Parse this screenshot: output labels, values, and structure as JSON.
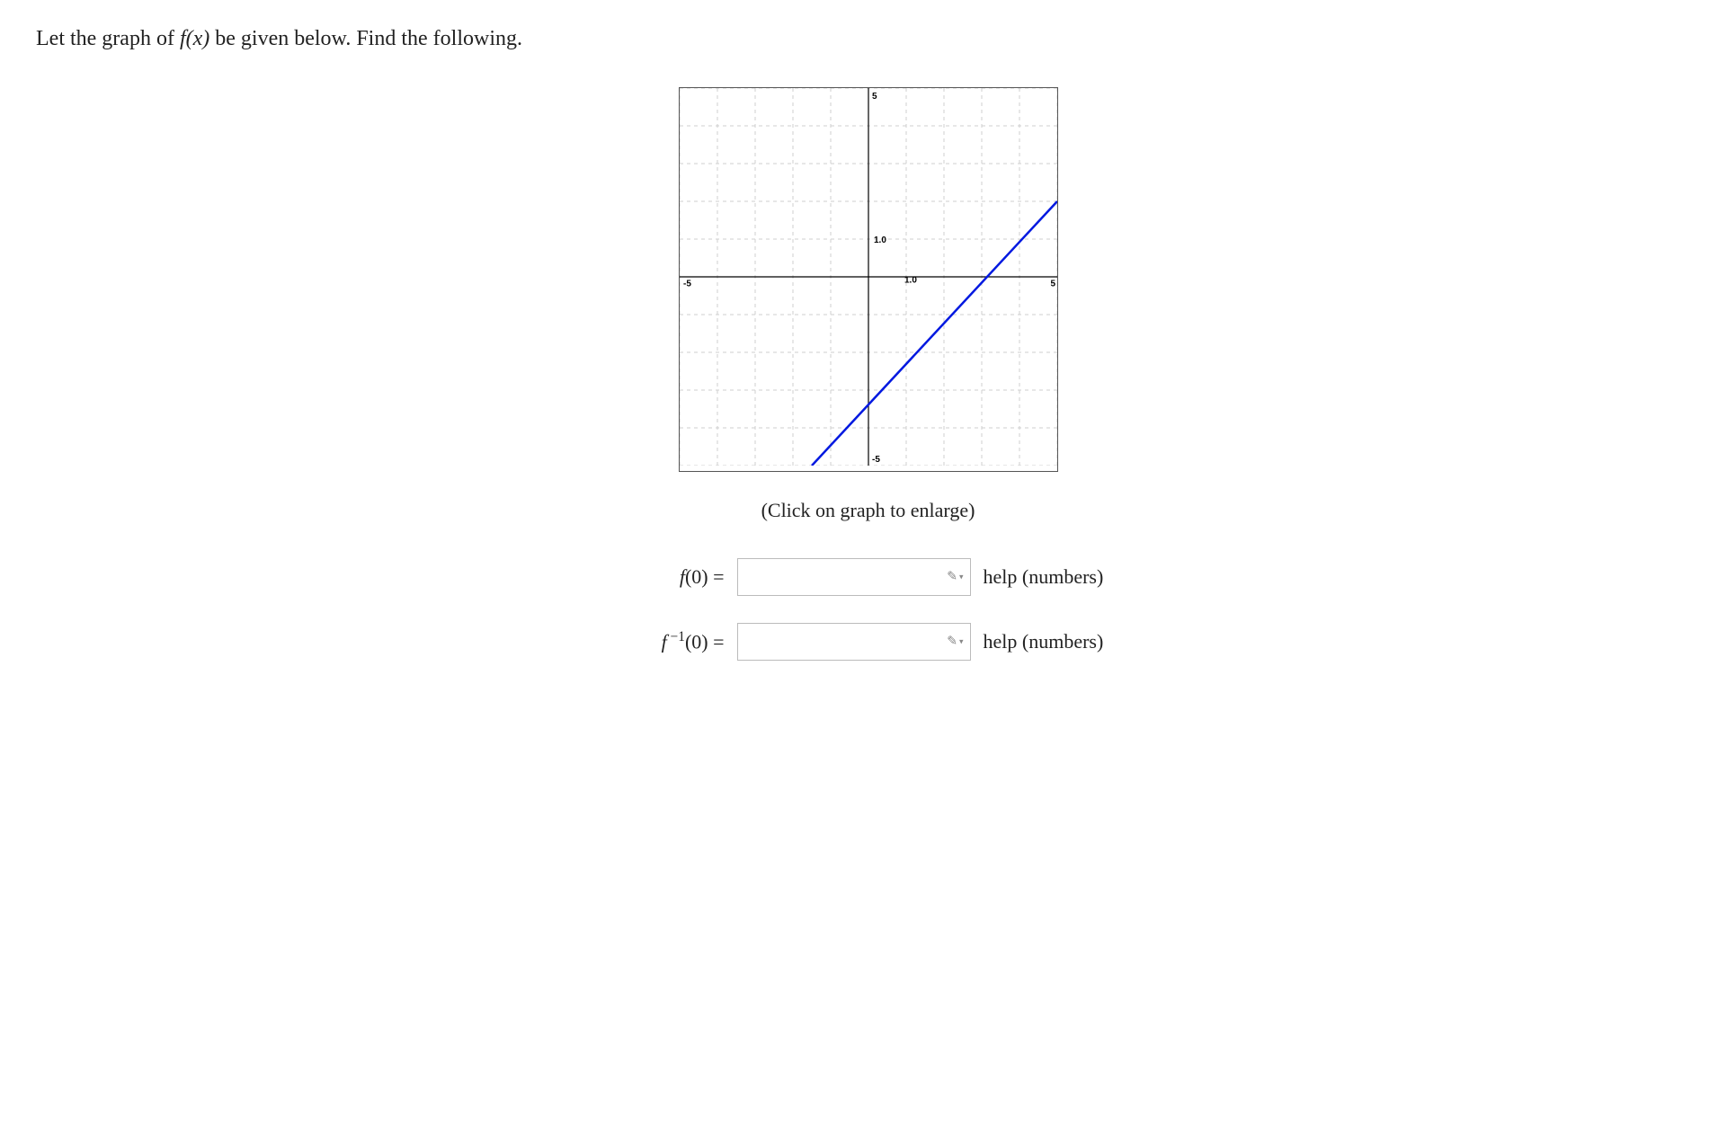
{
  "prompt": {
    "pre": "Let the graph of ",
    "fn": "f(x)",
    "post": " be given below. Find the following."
  },
  "graph": {
    "xlim": [
      -5,
      5
    ],
    "ylim": [
      -5,
      5
    ],
    "x_major_ticks": [
      -5,
      5
    ],
    "y_major_ticks": [
      -5,
      5
    ],
    "x_minor_step": 1,
    "y_minor_step": 1,
    "x_labels": {
      "-5": "-5",
      "5": "5"
    },
    "y_labels": {
      "-5": "-5",
      "5": "5"
    },
    "mid_labels": {
      "x_axis": "1.0",
      "y_axis": "1.0"
    },
    "grid_color": "#cfcfcf",
    "axis_color": "#000000",
    "background": "#ffffff",
    "line": {
      "color": "#0018e0",
      "width": 2.5,
      "points": [
        [
          -1.5,
          -5
        ],
        [
          5,
          2
        ]
      ]
    },
    "tick_font_size": 10,
    "tick_font_family": "Arial, sans-serif",
    "tick_font_weight": "bold",
    "tick_color": "#000000"
  },
  "caption": "(Click on graph to enlarge)",
  "answers": [
    {
      "label_html": "<span class=\"math-i\">f</span>(0) =",
      "name": "f-of-0",
      "value": "",
      "help": "help (numbers)"
    },
    {
      "label_html": "<span class=\"math-i\">f</span><sup>&nbsp;−1</sup>(0) =",
      "name": "f-inverse-of-0",
      "value": "",
      "help": "help (numbers)"
    }
  ],
  "icons": {
    "pencil": "✎",
    "dropdown": "▾"
  }
}
